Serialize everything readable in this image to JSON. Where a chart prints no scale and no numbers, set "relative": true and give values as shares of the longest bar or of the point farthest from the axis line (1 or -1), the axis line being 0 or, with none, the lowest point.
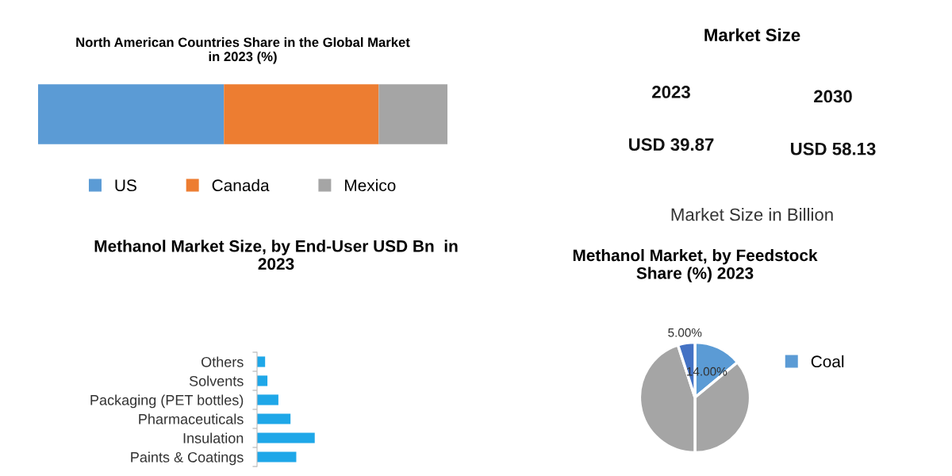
{
  "chart_data": [
    {
      "type": "bar",
      "title": "North American Countries Share in the Global Market\nin 2023 (%)",
      "orientation": "horizontal",
      "stacked": true,
      "relative": true,
      "legend": "bottom",
      "categories": [
        null
      ],
      "series": [
        {
          "name": "US",
          "color": "#5b9bd5",
          "values": [
            0.454
          ]
        },
        {
          "name": "Canada",
          "color": "#ed7d31",
          "values": [
            0.378
          ]
        },
        {
          "name": "Mexico",
          "color": "#a5a5a5",
          "values": [
            0.168
          ]
        }
      ]
    },
    {
      "type": "other",
      "title": "Market Size",
      "annotations": [
        "2023",
        "2030",
        "USD 39.87",
        "USD 58.13",
        "Market Size in Billion"
      ]
    },
    {
      "type": "bar",
      "title": "Methanol Market Size, by End-User USD Bn  in\n2023",
      "orientation": "horizontal",
      "relative": true,
      "color": "#1ea7e8",
      "categories": [
        "Others",
        "Solvents",
        "Packaging (PET bottles)",
        "Pharmaceuticals",
        "Insulation",
        "Paints & Coatings"
      ],
      "values": [
        0.14,
        0.18,
        0.37,
        0.58,
        1.0,
        0.68
      ]
    },
    {
      "type": "pie",
      "title": "Methanol Market, by Feedstock\nShare (%) 2023",
      "legend": "right",
      "categories": [
        "Coal",
        null,
        null,
        null
      ],
      "values": [
        14,
        36,
        45,
        5
      ],
      "colors": [
        "#5b9bd5",
        "#a5a5a5",
        "#a5a5a5",
        "#4472c4"
      ],
      "value_labels": [
        "14.00%",
        null,
        null,
        "5.00%"
      ]
    }
  ]
}
